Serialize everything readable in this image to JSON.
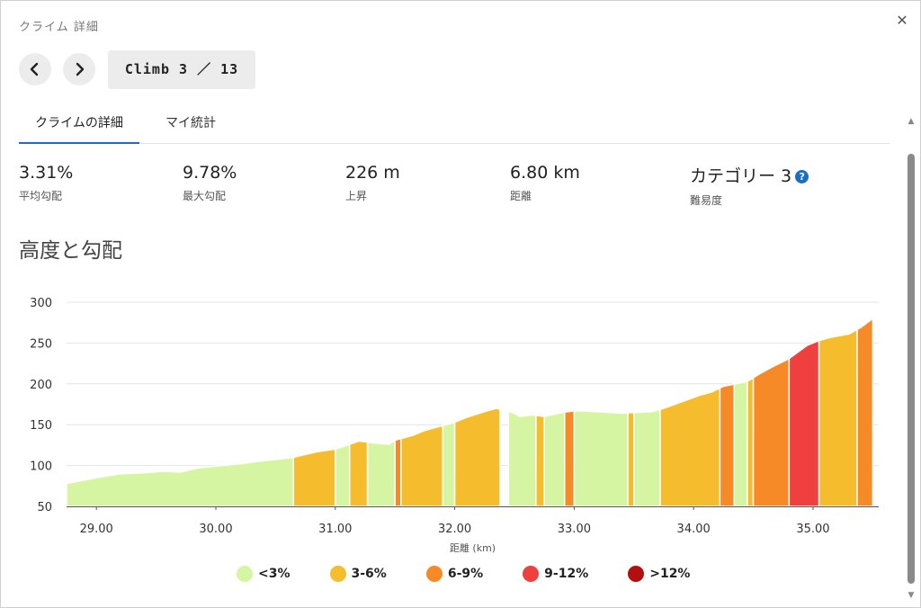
{
  "dialog": {
    "title": "クライム 詳細",
    "close_icon": "close-icon"
  },
  "nav": {
    "prev_icon": "chevron-left-icon",
    "next_icon": "chevron-right-icon",
    "climb_label": "Climb 3 ／ 13"
  },
  "tabs": [
    {
      "label": "クライムの詳細",
      "active": true
    },
    {
      "label": "マイ統計",
      "active": false
    }
  ],
  "stats": [
    {
      "value": "3.31%",
      "label": "平均勾配"
    },
    {
      "value": "9.78%",
      "label": "最大勾配"
    },
    {
      "value": "226 m",
      "label": "上昇"
    },
    {
      "value": "6.80 km",
      "label": "距離"
    },
    {
      "value": "カテゴリー 3",
      "label": "難易度",
      "help_icon": "?"
    }
  ],
  "chart_heading": "高度と勾配",
  "chart_data": {
    "type": "area",
    "xlabel": "距離 (km)",
    "ylabel": "",
    "xlim": [
      28.75,
      35.55
    ],
    "ylim": [
      50,
      300
    ],
    "x_ticks": [
      "29.00",
      "30.00",
      "31.00",
      "32.00",
      "33.00",
      "34.00",
      "35.00"
    ],
    "y_ticks": [
      "50",
      "100",
      "150",
      "200",
      "250",
      "300"
    ],
    "grid": true,
    "legend_position": "bottom",
    "grade_classes": [
      {
        "key": "lt3",
        "label": "<3%",
        "color": "#d6f5a2"
      },
      {
        "key": "3to6",
        "label": "3-6%",
        "color": "#f5bd2d"
      },
      {
        "key": "6to9",
        "label": "6-9%",
        "color": "#f58a27"
      },
      {
        "key": "9to12",
        "label": "9-12%",
        "color": "#ef3f3f"
      },
      {
        "key": "gt12",
        "label": ">12%",
        "color": "#b30f0f"
      }
    ],
    "profile": [
      [
        28.75,
        78
      ],
      [
        29.0,
        85
      ],
      [
        29.2,
        90
      ],
      [
        29.4,
        91
      ],
      [
        29.55,
        93
      ],
      [
        29.7,
        92
      ],
      [
        29.85,
        97
      ],
      [
        30.05,
        100
      ],
      [
        30.2,
        102
      ],
      [
        30.4,
        106
      ],
      [
        30.55,
        108
      ],
      [
        30.65,
        110
      ],
      [
        30.85,
        117
      ],
      [
        31.0,
        120
      ],
      [
        31.1,
        125
      ],
      [
        31.2,
        130
      ],
      [
        31.3,
        128
      ],
      [
        31.45,
        126
      ],
      [
        31.5,
        131
      ],
      [
        31.65,
        137
      ],
      [
        31.75,
        143
      ],
      [
        31.85,
        147
      ],
      [
        32.0,
        153
      ],
      [
        32.1,
        159
      ],
      [
        32.25,
        166
      ],
      [
        32.35,
        170
      ],
      [
        32.45,
        167
      ],
      [
        32.55,
        160
      ],
      [
        32.65,
        162
      ],
      [
        32.75,
        160
      ],
      [
        32.9,
        165
      ],
      [
        33.0,
        167
      ],
      [
        33.2,
        166
      ],
      [
        33.4,
        164
      ],
      [
        33.5,
        165
      ],
      [
        33.65,
        166
      ],
      [
        33.75,
        170
      ],
      [
        33.9,
        178
      ],
      [
        34.05,
        186
      ],
      [
        34.15,
        190
      ],
      [
        34.25,
        197
      ],
      [
        34.35,
        200
      ],
      [
        34.45,
        203
      ],
      [
        34.55,
        212
      ],
      [
        34.65,
        220
      ],
      [
        34.8,
        231
      ],
      [
        34.95,
        247
      ],
      [
        35.05,
        253
      ],
      [
        35.15,
        257
      ],
      [
        35.3,
        261
      ],
      [
        35.4,
        269
      ],
      [
        35.5,
        280
      ]
    ],
    "segments": [
      {
        "x0": 28.75,
        "x1": 30.65,
        "grade": "lt3"
      },
      {
        "x0": 30.65,
        "x1": 31.0,
        "grade": "3to6"
      },
      {
        "x0": 31.0,
        "x1": 31.12,
        "grade": "lt3"
      },
      {
        "x0": 31.12,
        "x1": 31.27,
        "grade": "3to6"
      },
      {
        "x0": 31.27,
        "x1": 31.5,
        "grade": "lt3"
      },
      {
        "x0": 31.5,
        "x1": 31.55,
        "grade": "6to9"
      },
      {
        "x0": 31.55,
        "x1": 31.9,
        "grade": "3to6"
      },
      {
        "x0": 31.9,
        "x1": 32.0,
        "grade": "lt3"
      },
      {
        "x0": 32.0,
        "x1": 32.38,
        "grade": "3to6"
      },
      {
        "x0": 32.45,
        "x1": 32.68,
        "grade": "lt3"
      },
      {
        "x0": 32.68,
        "x1": 32.75,
        "grade": "3to6"
      },
      {
        "x0": 32.75,
        "x1": 32.92,
        "grade": "lt3"
      },
      {
        "x0": 32.92,
        "x1": 33.0,
        "grade": "6to9"
      },
      {
        "x0": 33.0,
        "x1": 33.45,
        "grade": "lt3"
      },
      {
        "x0": 33.45,
        "x1": 33.5,
        "grade": "3to6"
      },
      {
        "x0": 33.5,
        "x1": 33.72,
        "grade": "lt3"
      },
      {
        "x0": 33.72,
        "x1": 34.22,
        "grade": "3to6"
      },
      {
        "x0": 34.22,
        "x1": 34.34,
        "grade": "6to9"
      },
      {
        "x0": 34.34,
        "x1": 34.45,
        "grade": "lt3"
      },
      {
        "x0": 34.45,
        "x1": 34.5,
        "grade": "3to6"
      },
      {
        "x0": 34.5,
        "x1": 34.8,
        "grade": "6to9"
      },
      {
        "x0": 34.8,
        "x1": 35.05,
        "grade": "9to12"
      },
      {
        "x0": 35.05,
        "x1": 35.37,
        "grade": "3to6"
      },
      {
        "x0": 35.37,
        "x1": 35.5,
        "grade": "6to9"
      }
    ]
  }
}
